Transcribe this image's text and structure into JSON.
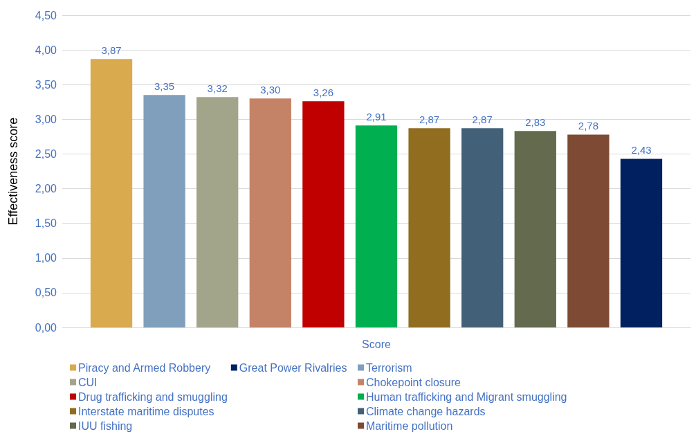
{
  "chart_data": {
    "type": "bar",
    "ylabel": "Effectiveness score",
    "categories": [
      "Score"
    ],
    "series": [
      {
        "name": "Piracy and Armed Robbery",
        "color": "#d9aa4e",
        "values": [
          3.87
        ],
        "value_labels": [
          "3,87"
        ]
      },
      {
        "name": "Terrorism",
        "color": "#7f9fbd",
        "values": [
          3.35
        ],
        "value_labels": [
          "3,35"
        ]
      },
      {
        "name": "CUI",
        "color": "#a3a58a",
        "values": [
          3.32
        ],
        "value_labels": [
          "3,32"
        ]
      },
      {
        "name": "Chokepoint closure",
        "color": "#c48366",
        "values": [
          3.3
        ],
        "value_labels": [
          "3,30"
        ]
      },
      {
        "name": "Drug trafficking and smuggling",
        "color": "#c00000",
        "values": [
          3.26
        ],
        "value_labels": [
          "3,26"
        ]
      },
      {
        "name": "Human trafficking and Migrant smuggling",
        "color": "#00b050",
        "values": [
          2.91
        ],
        "value_labels": [
          "2,91"
        ]
      },
      {
        "name": "Interstate maritime disputes",
        "color": "#916d1f",
        "values": [
          2.87
        ],
        "value_labels": [
          "2,87"
        ]
      },
      {
        "name": "Climate change hazards",
        "color": "#436079",
        "values": [
          2.87
        ],
        "value_labels": [
          "2,87"
        ]
      },
      {
        "name": "IUU fishing",
        "color": "#646a4e",
        "values": [
          2.83
        ],
        "value_labels": [
          "2,83"
        ]
      },
      {
        "name": "Maritime pollution",
        "color": "#7e4a33",
        "values": [
          2.78
        ],
        "value_labels": [
          "2,78"
        ]
      },
      {
        "name": "Great Power Rivalries",
        "color": "#002060",
        "values": [
          2.43
        ],
        "value_labels": [
          "2,43"
        ]
      }
    ],
    "ylim": [
      0,
      4.5
    ],
    "yticks": [
      {
        "value": 0,
        "label": "0,00"
      },
      {
        "value": 0.5,
        "label": "0,50"
      },
      {
        "value": 1,
        "label": "1,00"
      },
      {
        "value": 1.5,
        "label": "1,50"
      },
      {
        "value": 2,
        "label": "2,00"
      },
      {
        "value": 2.5,
        "label": "2,50"
      },
      {
        "value": 3,
        "label": "3,00"
      },
      {
        "value": 3.5,
        "label": "3,50"
      },
      {
        "value": 4,
        "label": "4,00"
      },
      {
        "value": 4.5,
        "label": "4,50"
      }
    ],
    "grid": "y",
    "legend": "bottom"
  }
}
